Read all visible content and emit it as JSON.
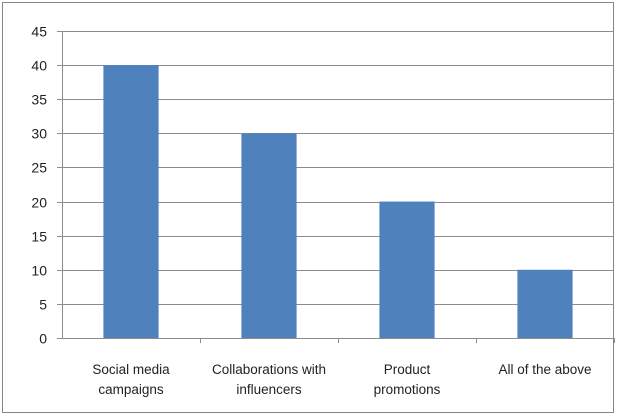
{
  "chart_data": {
    "type": "bar",
    "title": "",
    "xlabel": "",
    "ylabel": "",
    "categories": [
      [
        "Social media",
        "campaigns"
      ],
      [
        "Collaborations with",
        "influencers"
      ],
      [
        "Product",
        "promotions"
      ],
      [
        "All of the above"
      ]
    ],
    "values": [
      40,
      30,
      20,
      10
    ],
    "ylim": [
      0,
      45
    ],
    "yticks": [
      0,
      5,
      10,
      15,
      20,
      25,
      30,
      35,
      40,
      45
    ],
    "grid": true,
    "legend": "none",
    "bar_color": "#4F81BD",
    "grid_color": "#8C8C8C"
  }
}
